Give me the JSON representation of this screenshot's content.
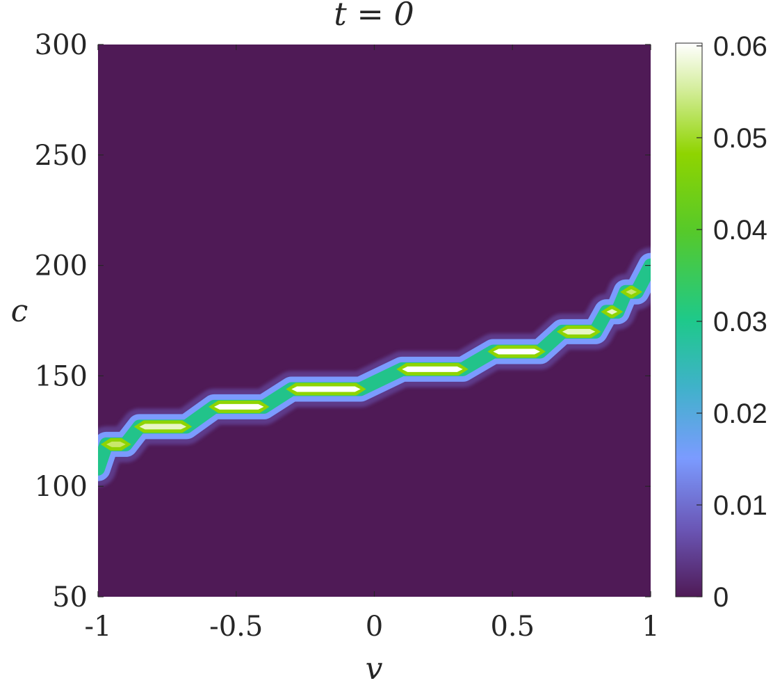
{
  "chart_data": {
    "type": "heatmap",
    "title": "t = 0",
    "xlabel": "v",
    "ylabel": "c",
    "xlim": [
      -1,
      1
    ],
    "ylim": [
      50,
      300
    ],
    "x_ticks": [
      "-1",
      "-0.5",
      "0",
      "0.5",
      "1"
    ],
    "x_tick_values": [
      -1,
      -0.5,
      0,
      0.5,
      1
    ],
    "y_ticks": [
      "300",
      "250",
      "200",
      "150",
      "100",
      "50"
    ],
    "y_tick_values": [
      300,
      250,
      200,
      150,
      100,
      50
    ],
    "colorbar": {
      "range": [
        0,
        0.06
      ],
      "ticks": [
        "0.06",
        "0.05",
        "0.04",
        "0.03",
        "0.02",
        "0.01",
        "0"
      ],
      "tick_values": [
        0.06,
        0.05,
        0.04,
        0.03,
        0.02,
        0.01,
        0
      ],
      "colors": [
        "#4f1a56",
        "#7b9bff",
        "#22c38a",
        "#8fd400",
        "#ffffff"
      ]
    },
    "background_value": 0,
    "ridge_segments": [
      {
        "v_start": -0.97,
        "v_end": -0.9,
        "c": 119,
        "peak": 0.045
      },
      {
        "v_start": -0.85,
        "v_end": -0.68,
        "c": 127,
        "peak": 0.055
      },
      {
        "v_start": -0.58,
        "v_end": -0.4,
        "c": 136,
        "peak": 0.06
      },
      {
        "v_start": -0.3,
        "v_end": -0.05,
        "c": 144,
        "peak": 0.06
      },
      {
        "v_start": 0.1,
        "v_end": 0.32,
        "c": 153,
        "peak": 0.06
      },
      {
        "v_start": 0.43,
        "v_end": 0.6,
        "c": 161,
        "peak": 0.06
      },
      {
        "v_start": 0.68,
        "v_end": 0.8,
        "c": 170,
        "peak": 0.055
      },
      {
        "v_start": 0.84,
        "v_end": 0.88,
        "c": 179,
        "peak": 0.05
      },
      {
        "v_start": 0.91,
        "v_end": 0.95,
        "c": 188,
        "peak": 0.04
      }
    ]
  }
}
